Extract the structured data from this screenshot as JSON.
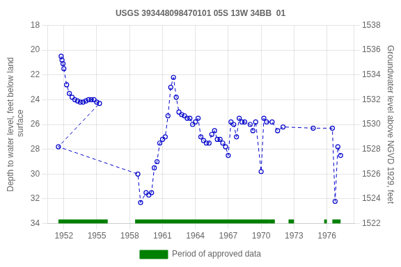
{
  "chart_data": {
    "type": "line",
    "title": "USGS 393448098470101 05S 13W 34BB  01",
    "y_label": "Depth to water level, feet below land\n surface",
    "y2_label": "Groundwater level above NGVD 1929, feet",
    "x": [
      1951.75,
      1951.83,
      1951.92,
      1952.0,
      1952.25,
      1952.5,
      1952.75,
      1953.0,
      1953.25,
      1953.5,
      1953.75,
      1954.0,
      1954.25,
      1954.5,
      1954.75,
      1955.0,
      1955.25,
      1951.5,
      1958.75,
      1959.0,
      1959.5,
      1959.75,
      1960.0,
      1960.25,
      1960.5,
      1960.75,
      1961.0,
      1961.25,
      1961.5,
      1961.75,
      1962.0,
      1962.25,
      1962.5,
      1962.75,
      1963.0,
      1963.25,
      1963.5,
      1963.75,
      1964.0,
      1964.25,
      1964.5,
      1964.75,
      1965.0,
      1965.25,
      1965.5,
      1965.75,
      1966.0,
      1966.25,
      1966.5,
      1966.75,
      1967.0,
      1967.25,
      1967.5,
      1967.75,
      1968.0,
      1968.25,
      1968.5,
      1969.0,
      1969.25,
      1969.5,
      1970.0,
      1970.25,
      1970.5,
      1971.0,
      1971.5,
      1972.0,
      1974.75,
      1976.5,
      1976.75,
      1977.0,
      1977.25
    ],
    "values": [
      20.5,
      20.8,
      21.1,
      21.5,
      22.8,
      23.5,
      23.8,
      24.0,
      24.1,
      24.2,
      24.2,
      24.1,
      24.0,
      24.0,
      24.0,
      24.2,
      24.3,
      27.8,
      30.0,
      32.3,
      31.5,
      31.7,
      31.5,
      29.5,
      29.0,
      27.5,
      27.2,
      27.0,
      25.3,
      23.0,
      22.2,
      23.8,
      25.0,
      25.2,
      25.3,
      25.5,
      25.5,
      26.0,
      25.8,
      25.5,
      27.0,
      27.3,
      27.5,
      27.5,
      26.8,
      26.5,
      27.2,
      27.2,
      27.5,
      27.8,
      28.5,
      25.8,
      26.0,
      27.0,
      25.5,
      25.8,
      25.8,
      26.0,
      26.5,
      25.8,
      29.8,
      25.5,
      25.8,
      25.8,
      26.5,
      26.2,
      26.3,
      26.3,
      32.2,
      27.8,
      28.5
    ],
    "color": "#0000CC",
    "line_style": "dashed",
    "marker": "circle",
    "xlim": [
      1950.5,
      1978.5
    ],
    "xticks": [
      1952,
      1955,
      1958,
      1961,
      1964,
      1967,
      1970,
      1973,
      1976
    ],
    "ylim": [
      34,
      18
    ],
    "yticks": [
      18,
      20,
      22,
      24,
      26,
      28,
      30,
      32,
      34
    ],
    "y2lim": [
      1522,
      1538
    ],
    "y2ticks": [
      1522,
      1524,
      1526,
      1528,
      1530,
      1532,
      1534,
      1536,
      1538
    ],
    "grid": true,
    "legend": "bottom",
    "approved_periods": {
      "name": "Period of approved data",
      "color": "#008000",
      "ranges": [
        [
          1951.5,
          1956.0
        ],
        [
          1958.5,
          1970.75
        ],
        [
          1970.75,
          1971.25
        ],
        [
          1972.5,
          1973.0
        ],
        [
          1975.75,
          1976.0
        ],
        [
          1976.5,
          1977.25
        ]
      ]
    }
  }
}
